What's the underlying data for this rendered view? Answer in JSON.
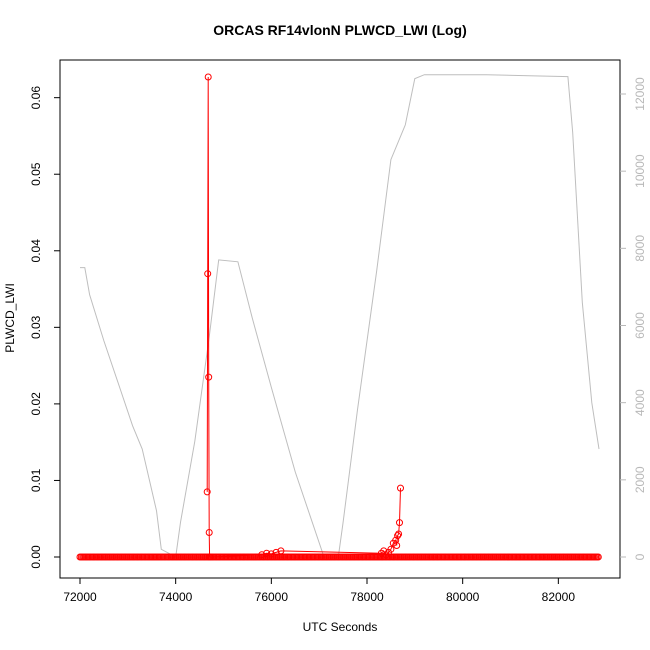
{
  "chart_data": {
    "type": "line",
    "title": "ORCAS RF14vlonN PLWCD_LWI (Log)",
    "xlabel": "UTC Seconds",
    "ylabel": "PLWCD_LWI",
    "y2label": "",
    "xlim": [
      72000,
      83000
    ],
    "ylim": [
      0,
      0.065
    ],
    "y2lim": [
      0,
      12800
    ],
    "x_ticks": [
      72000,
      74000,
      76000,
      78000,
      80000,
      82000
    ],
    "y_ticks": [
      0.0,
      0.01,
      0.02,
      0.03,
      0.04,
      0.05,
      0.06
    ],
    "y_tick_labels": [
      "0.00",
      "0.01",
      "0.02",
      "0.03",
      "0.04",
      "0.05",
      "0.06"
    ],
    "y2_ticks": [
      0,
      2000,
      4000,
      6000,
      8000,
      10000,
      12000
    ],
    "grid": false,
    "colors": {
      "primary": "#ff0000",
      "secondary": "#bebebe",
      "axis": "#000000",
      "right_axis": "#b8b8b8"
    },
    "series": [
      {
        "axis": "left",
        "style": "line+circle",
        "color": "#ff0000",
        "x": [
          74660,
          74670,
          74680,
          74690,
          74700,
          74710,
          74720,
          75800,
          75900,
          76000,
          76100,
          76200,
          78300,
          78350,
          78400,
          78450,
          78500,
          78550,
          78600,
          78620,
          78640,
          78660,
          78680,
          78700
        ],
        "y": [
          0.0085,
          0.037,
          0.0627,
          0.0235,
          0.0032,
          0.0,
          0.0,
          0.0003,
          0.0005,
          0.0004,
          0.0006,
          0.0008,
          0.0005,
          0.0008,
          0.0003,
          0.0006,
          0.001,
          0.0018,
          0.0022,
          0.0015,
          0.0028,
          0.003,
          0.0045,
          0.009
        ]
      },
      {
        "axis": "right",
        "style": "line",
        "color": "#bebebe",
        "x": [
          72000,
          72100,
          72200,
          72500,
          72800,
          73100,
          73300,
          73600,
          73700,
          74000,
          74100,
          74400,
          74700,
          74900,
          75300,
          75600,
          76000,
          76500,
          77100,
          77400,
          77500,
          77800,
          78200,
          78500,
          78800,
          79000,
          79200,
          79600,
          80500,
          81500,
          82200,
          82300,
          82500,
          82700,
          82850
        ],
        "y": [
          7500,
          7500,
          6800,
          5600,
          4500,
          3400,
          2800,
          1200,
          200,
          0,
          900,
          3000,
          5700,
          7700,
          7650,
          6200,
          4400,
          2200,
          0,
          0,
          900,
          3800,
          7400,
          10300,
          11200,
          12400,
          12500,
          12500,
          12500,
          12470,
          12450,
          11000,
          6600,
          4000,
          2800
        ]
      }
    ],
    "baseline_series": {
      "axis": "left",
      "y": 0,
      "x_range": [
        72000,
        82850
      ],
      "style": "dense circles"
    }
  }
}
